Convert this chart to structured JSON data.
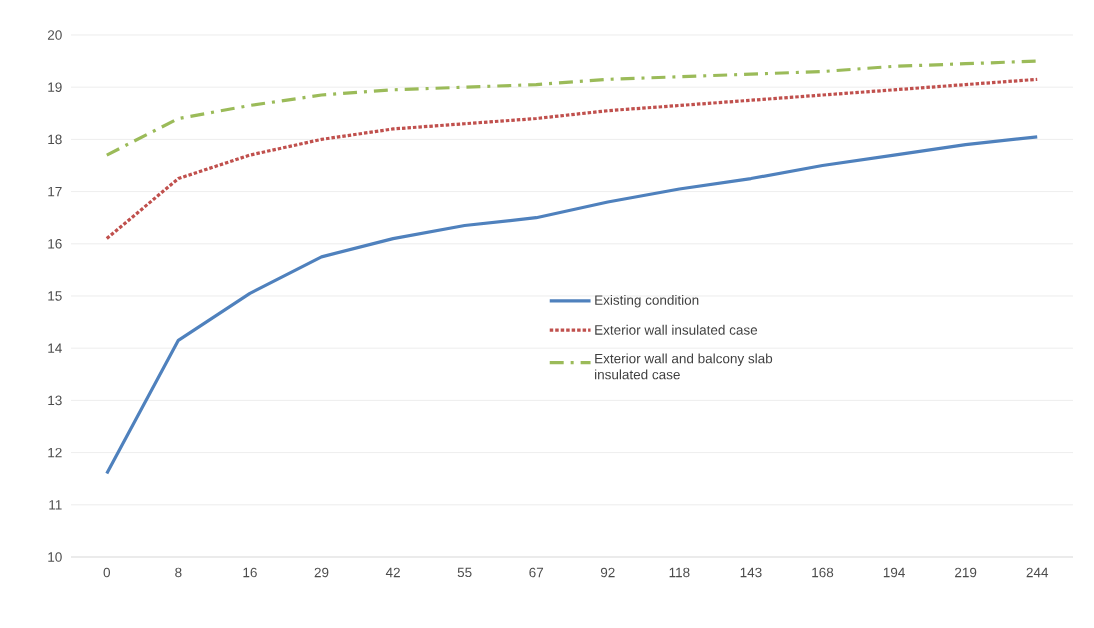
{
  "chart_data": {
    "type": "line",
    "categories": [
      "0",
      "8",
      "16",
      "29",
      "42",
      "55",
      "67",
      "92",
      "118",
      "143",
      "168",
      "194",
      "219",
      "244"
    ],
    "series": [
      {
        "name": "Existing condition",
        "color": "#4f81bd",
        "line_style": "solid",
        "values": [
          11.6,
          14.15,
          15.05,
          15.75,
          16.1,
          16.35,
          16.5,
          16.8,
          17.05,
          17.25,
          17.5,
          17.7,
          17.9,
          18.05
        ]
      },
      {
        "name": "Exterior wall insulated case",
        "color": "#c0504d",
        "line_style": "dotted",
        "values": [
          16.1,
          17.25,
          17.7,
          18.0,
          18.2,
          18.3,
          18.4,
          18.55,
          18.65,
          18.75,
          18.85,
          18.95,
          19.05,
          19.15
        ]
      },
      {
        "name": "Exterior wall and balcony slab insulated case",
        "color": "#9bbb59",
        "line_style": "dashdot",
        "values": [
          17.7,
          18.4,
          18.65,
          18.85,
          18.95,
          19.0,
          19.05,
          19.15,
          19.2,
          19.25,
          19.3,
          19.4,
          19.45,
          19.5
        ]
      }
    ],
    "ylim": [
      10,
      20
    ],
    "yticks": [
      10,
      11,
      12,
      13,
      14,
      15,
      16,
      17,
      18,
      19,
      20
    ],
    "grid": "y",
    "legend": "center"
  }
}
